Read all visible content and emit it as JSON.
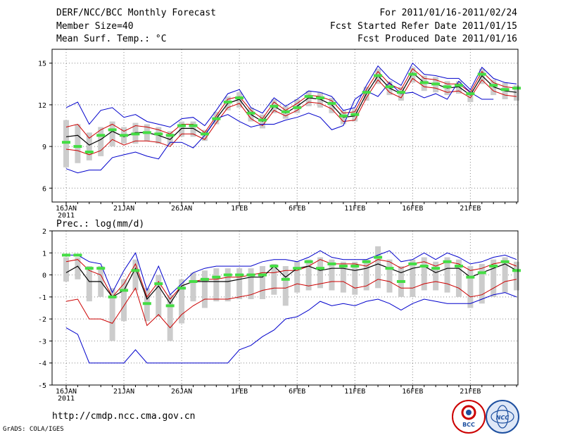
{
  "header": {
    "left": [
      "DERF/NCC/BCC Monthly Forecast",
      "Member Size=40",
      "Mean Surf. Temp.: °C"
    ],
    "right": [
      "For 2011/01/16-2011/02/24",
      "Fcst Started Refer Date 2011/01/15",
      "Fcst Produced Date 2011/01/16"
    ]
  },
  "footer": {
    "url": "http://cmdp.ncc.cma.gov.cn",
    "credit": "GrADS: COLA/IGES"
  },
  "logos": [
    "BCC",
    "NCC"
  ],
  "chart_data": [
    {
      "type": "line",
      "title": "Mean Surf. Temp.: °C",
      "x": [
        1,
        2,
        3,
        4,
        5,
        6,
        7,
        8,
        9,
        10,
        11,
        12,
        13,
        14,
        15,
        16,
        17,
        18,
        19,
        20,
        21,
        22,
        23,
        24,
        25,
        26,
        27,
        28,
        29,
        30,
        31,
        32,
        33,
        34,
        35,
        36,
        37,
        38,
        39,
        40
      ],
      "xtick_labels": [
        "16JAN",
        "21JAN",
        "26JAN",
        "1FEB",
        "6FEB",
        "11FEB",
        "16FEB",
        "21FEB"
      ],
      "xtick_positions": [
        1,
        6,
        11,
        16,
        21,
        26,
        31,
        36
      ],
      "year_label": "2011",
      "ylim": [
        5,
        16
      ],
      "yticks": [
        6,
        9,
        12,
        15
      ],
      "series": [
        {
          "name": "max",
          "color": "#0000cc",
          "values": [
            11.8,
            12.2,
            10.6,
            11.6,
            11.8,
            11.1,
            11.3,
            10.8,
            10.6,
            10.4,
            11.0,
            11.1,
            10.5,
            11.6,
            12.8,
            13.1,
            11.8,
            11.4,
            12.5,
            11.9,
            12.4,
            13.0,
            12.9,
            12.6,
            11.6,
            11.8,
            13.4,
            14.8,
            13.9,
            13.4,
            15.0,
            14.2,
            14.1,
            13.9,
            13.9,
            13.1,
            14.7,
            13.9,
            13.6,
            13.5
          ]
        },
        {
          "name": "upper",
          "color": "#cc0000",
          "values": [
            10.4,
            10.6,
            9.6,
            10.2,
            10.6,
            10.1,
            10.5,
            10.4,
            10.2,
            9.9,
            10.6,
            10.6,
            10.0,
            11.2,
            12.4,
            12.6,
            11.6,
            11.0,
            12.2,
            11.6,
            12.1,
            12.7,
            12.6,
            12.3,
            11.4,
            11.5,
            13.1,
            14.4,
            13.5,
            13.1,
            14.6,
            13.9,
            13.8,
            13.5,
            13.5,
            12.9,
            14.4,
            13.6,
            13.3,
            13.2
          ]
        },
        {
          "name": "mean",
          "color": "#000000",
          "values": [
            9.7,
            9.8,
            9.1,
            9.5,
            10.1,
            9.7,
            10.0,
            10.0,
            9.8,
            9.5,
            10.3,
            10.3,
            9.8,
            11.0,
            12.1,
            12.4,
            11.3,
            10.8,
            11.9,
            11.4,
            11.9,
            12.5,
            12.4,
            12.0,
            11.1,
            11.2,
            12.8,
            14.1,
            13.2,
            12.8,
            14.3,
            13.6,
            13.5,
            13.2,
            13.3,
            12.7,
            14.1,
            13.3,
            13.0,
            12.9
          ]
        },
        {
          "name": "lower",
          "color": "#cc0000",
          "values": [
            8.8,
            8.7,
            8.4,
            8.7,
            9.5,
            9.1,
            9.4,
            9.4,
            9.3,
            9.0,
            9.9,
            9.9,
            9.5,
            10.7,
            11.8,
            12.1,
            11.0,
            10.5,
            11.6,
            11.2,
            11.6,
            12.2,
            12.1,
            11.7,
            10.8,
            10.9,
            12.5,
            13.8,
            12.9,
            12.5,
            13.9,
            13.3,
            13.2,
            12.9,
            13.0,
            12.5,
            13.8,
            13.0,
            12.7,
            12.6
          ]
        },
        {
          "name": "min",
          "color": "#0000cc",
          "values": [
            7.4,
            7.1,
            7.3,
            7.3,
            8.2,
            8.4,
            8.6,
            8.3,
            8.1,
            9.3,
            9.3,
            8.9,
            9.8,
            11.0,
            11.3,
            10.8,
            10.4,
            10.6,
            10.6,
            10.9,
            11.1,
            11.4,
            11.1,
            10.2,
            10.5,
            12.4,
            13.0,
            12.6,
            13.6,
            12.8,
            12.9,
            12.5,
            12.8,
            12.4,
            13.7,
            12.9,
            12.4,
            12.4,
            null,
            null
          ]
        },
        {
          "name": "median",
          "color": "#44dd44",
          "values": [
            9.3,
            9.0,
            8.6,
            9.8,
            10.2,
            9.8,
            9.9,
            10.0,
            9.9,
            9.8,
            10.5,
            10.5,
            9.9,
            11.0,
            12.2,
            12.5,
            11.4,
            10.9,
            11.9,
            11.5,
            11.8,
            12.6,
            12.5,
            12.1,
            11.2,
            11.3,
            12.9,
            14.1,
            13.3,
            12.9,
            14.2,
            13.6,
            13.5,
            13.3,
            13.4,
            12.8,
            14.2,
            13.4,
            13.1,
            13.2
          ]
        }
      ],
      "box_low": [
        7.5,
        7.8,
        8.0,
        8.3,
        9.0,
        9.2,
        9.2,
        9.4,
        9.2,
        9.1,
        9.7,
        9.7,
        9.4,
        10.6,
        11.6,
        11.8,
        10.8,
        10.3,
        11.4,
        11.0,
        11.4,
        11.9,
        11.8,
        11.4,
        10.6,
        10.8,
        12.3,
        13.5,
        12.7,
        12.3,
        13.6,
        13.0,
        12.9,
        12.7,
        12.8,
        12.2,
        13.5,
        12.7,
        12.4,
        12.3
      ],
      "box_high": [
        10.9,
        10.6,
        10.0,
        10.4,
        10.8,
        10.4,
        10.7,
        10.6,
        10.4,
        10.1,
        10.8,
        10.8,
        10.2,
        11.5,
        12.6,
        12.9,
        11.8,
        11.3,
        12.4,
        11.9,
        12.4,
        13.0,
        12.9,
        12.5,
        11.6,
        11.7,
        13.3,
        14.6,
        13.7,
        13.3,
        14.7,
        14.1,
        14.0,
        13.7,
        13.7,
        13.1,
        14.6,
        13.8,
        13.6,
        13.4
      ]
    },
    {
      "type": "line",
      "title": "Prec.: log(mm/d)",
      "x": [
        1,
        2,
        3,
        4,
        5,
        6,
        7,
        8,
        9,
        10,
        11,
        12,
        13,
        14,
        15,
        16,
        17,
        18,
        19,
        20,
        21,
        22,
        23,
        24,
        25,
        26,
        27,
        28,
        29,
        30,
        31,
        32,
        33,
        34,
        35,
        36,
        37,
        38,
        39,
        40
      ],
      "xtick_labels": [
        "16JAN",
        "21JAN",
        "26JAN",
        "1FEB",
        "6FEB",
        "11FEB",
        "16FEB",
        "21FEB"
      ],
      "xtick_positions": [
        1,
        6,
        11,
        16,
        21,
        26,
        31,
        36
      ],
      "year_label": "2011",
      "ylim": [
        -5,
        2
      ],
      "yticks": [
        -5,
        -4,
        -3,
        -2,
        -1,
        0,
        1,
        2
      ],
      "series": [
        {
          "name": "max",
          "color": "#0000cc",
          "values": [
            0.9,
            0.9,
            0.6,
            0.5,
            -0.8,
            0.2,
            1.0,
            -0.7,
            0.4,
            -0.9,
            -0.4,
            0.1,
            0.3,
            0.4,
            0.4,
            0.4,
            0.4,
            0.6,
            0.7,
            0.7,
            0.6,
            0.8,
            1.1,
            0.8,
            0.7,
            0.7,
            0.7,
            0.9,
            1.1,
            0.6,
            0.7,
            1.0,
            0.7,
            1.0,
            0.8,
            0.5,
            0.6,
            0.8,
            0.9,
            0.7
          ]
        },
        {
          "name": "upper",
          "color": "#cc0000",
          "values": [
            0.6,
            0.7,
            0.2,
            0.0,
            -1.0,
            -0.4,
            0.5,
            -1.0,
            -0.3,
            -1.1,
            -0.5,
            -0.3,
            -0.2,
            -0.2,
            -0.1,
            -0.1,
            0.0,
            0.1,
            0.1,
            0.2,
            0.2,
            0.4,
            0.7,
            0.5,
            0.5,
            0.5,
            0.4,
            0.7,
            0.6,
            0.3,
            0.5,
            0.6,
            0.4,
            0.6,
            0.5,
            0.2,
            0.3,
            0.5,
            0.6,
            0.4
          ]
        },
        {
          "name": "mean",
          "color": "#000000",
          "values": [
            0.1,
            0.4,
            -0.3,
            -0.3,
            -1.0,
            -0.7,
            0.3,
            -1.1,
            -0.5,
            -1.3,
            -0.5,
            -0.3,
            -0.3,
            -0.3,
            -0.3,
            -0.2,
            -0.1,
            -0.1,
            0.4,
            -0.1,
            0.3,
            0.4,
            0.2,
            0.3,
            0.3,
            0.2,
            0.3,
            0.5,
            0.3,
            0.1,
            0.3,
            0.4,
            0.1,
            0.3,
            0.3,
            -0.1,
            0.1,
            0.3,
            0.5,
            0.2
          ]
        },
        {
          "name": "lower",
          "color": "#cc0000",
          "values": [
            -1.2,
            -1.1,
            -2.0,
            -2.0,
            -2.2,
            -1.4,
            -0.6,
            -2.3,
            -1.8,
            -2.4,
            -1.8,
            -1.4,
            -1.1,
            -1.1,
            -1.1,
            -1.0,
            -0.9,
            -0.7,
            -0.6,
            -0.6,
            -0.4,
            -0.5,
            -0.4,
            -0.3,
            -0.3,
            -0.6,
            -0.5,
            -0.2,
            -0.3,
            -0.6,
            -0.6,
            -0.4,
            -0.3,
            -0.4,
            -0.6,
            -1.0,
            -0.9,
            -0.6,
            -0.3,
            -0.2
          ]
        },
        {
          "name": "min",
          "color": "#0000cc",
          "values": [
            -2.4,
            -2.7,
            -4.0,
            -4.0,
            -4.0,
            -4.0,
            -3.4,
            -4.0,
            -4.0,
            -4.0,
            -4.0,
            -4.0,
            -4.0,
            -4.0,
            -4.0,
            -3.4,
            -3.2,
            -2.8,
            -2.5,
            -2.0,
            -1.9,
            -1.6,
            -1.2,
            -1.4,
            -1.3,
            -1.4,
            -1.2,
            -1.1,
            -1.3,
            -1.6,
            -1.3,
            -1.1,
            -1.2,
            -1.3,
            -1.3,
            -1.3,
            -1.1,
            -0.9,
            -0.8,
            -1.0
          ]
        },
        {
          "name": "median",
          "color": "#44dd44",
          "values": [
            0.9,
            0.9,
            0.3,
            0.3,
            -1.0,
            -0.7,
            0.2,
            -1.3,
            -0.4,
            -1.4,
            -0.6,
            -0.3,
            -0.2,
            -0.1,
            0.0,
            0.0,
            0.0,
            0.0,
            0.4,
            -0.2,
            0.3,
            0.6,
            0.3,
            0.5,
            0.4,
            0.4,
            0.6,
            0.8,
            0.3,
            -0.3,
            0.5,
            0.4,
            0.3,
            0.6,
            0.4,
            -0.1,
            0.1,
            0.4,
            0.6,
            0.2
          ]
        }
      ],
      "box_low": [
        -0.3,
        -0.2,
        -1.2,
        -1.0,
        -3.0,
        -2.1,
        -0.7,
        -2.1,
        -1.9,
        -3.0,
        -2.2,
        -1.2,
        -1.5,
        -1.2,
        -1.2,
        -1.1,
        -1.1,
        -1.1,
        -0.9,
        -1.4,
        -0.8,
        -0.7,
        -0.6,
        -0.7,
        -0.8,
        -0.9,
        -0.7,
        -0.6,
        -0.8,
        -1.0,
        -1.0,
        -0.7,
        -0.7,
        -0.8,
        -1.0,
        -1.5,
        -1.3,
        -1.0,
        -0.8,
        -0.7
      ],
      "box_high": [
        0.8,
        0.8,
        0.4,
        0.4,
        -0.6,
        -0.2,
        0.7,
        -0.6,
        0.0,
        -0.9,
        -0.2,
        0.1,
        0.2,
        0.3,
        0.3,
        0.3,
        0.3,
        0.4,
        0.5,
        0.4,
        0.6,
        0.7,
        0.8,
        0.7,
        0.6,
        0.6,
        0.7,
        1.3,
        0.7,
        0.4,
        0.7,
        0.8,
        0.6,
        0.8,
        0.7,
        0.4,
        0.5,
        0.7,
        0.8,
        0.6
      ]
    }
  ]
}
